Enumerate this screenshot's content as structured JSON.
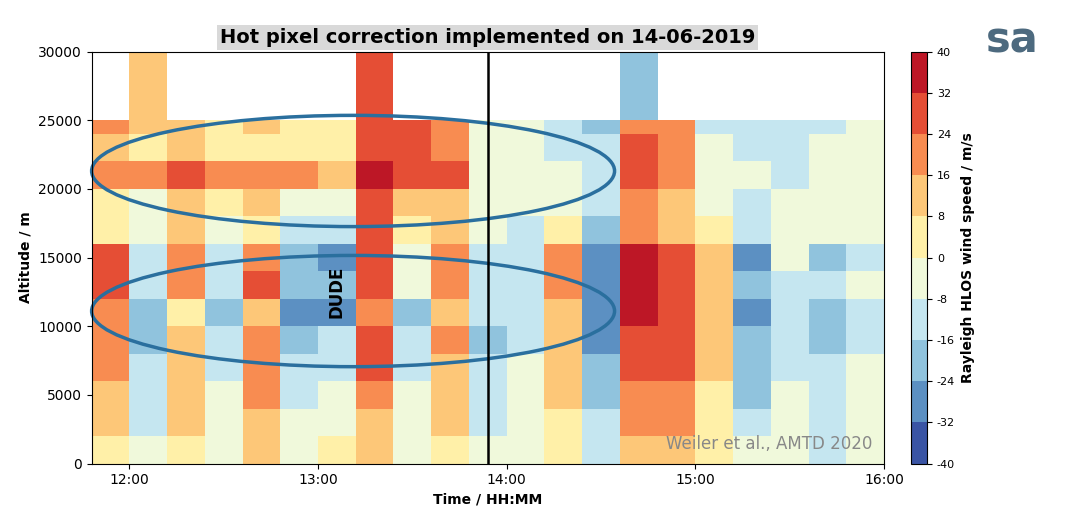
{
  "chart_data": {
    "type": "heatmap",
    "title": "Hot pixel correction implemented on 14-06-2019",
    "x_label": "Time / HH:MM",
    "y_label": "Altitude / m",
    "colorbar_label": "Rayleigh HLOS wind speed / m/s",
    "source": "Weiler et al., AMTD 2020",
    "logo": "sa",
    "annotations": [
      {
        "text": "DUDE",
        "x": 13.1,
        "y": 12500
      }
    ],
    "vlines": [
      13.9
    ],
    "xlim": [
      11.8,
      16.0
    ],
    "xticks": [
      {
        "value": 12,
        "label": "12:00"
      },
      {
        "value": 13,
        "label": "13:00"
      },
      {
        "value": 14,
        "label": "14:00"
      },
      {
        "value": 15,
        "label": "15:00"
      },
      {
        "value": 16,
        "label": "16:00"
      }
    ],
    "ylim": [
      0,
      30000
    ],
    "yticks": [
      0,
      5000,
      10000,
      15000,
      20000,
      25000,
      30000
    ],
    "x_edges": [
      11.8,
      12.0,
      12.2,
      12.4,
      12.6,
      12.8,
      13.0,
      13.2,
      13.4,
      13.6,
      13.8,
      14.0,
      14.2,
      14.4,
      14.6,
      14.8,
      15.0,
      15.2,
      15.4,
      15.6,
      15.8,
      16.0
    ],
    "y_edges": [
      0,
      2000,
      4000,
      6000,
      8000,
      10000,
      12000,
      14000,
      16000,
      18000,
      20000,
      22000,
      24000,
      25000,
      30000
    ],
    "values": [
      [
        4,
        -8,
        6,
        -4,
        8,
        -6,
        2,
        10,
        -4,
        6,
        -8,
        -6,
        4,
        -10,
        8,
        12,
        2,
        -8,
        -4,
        -10,
        -2
      ],
      [
        10,
        -12,
        8,
        -6,
        12,
        -8,
        -4,
        14,
        -6,
        8,
        -10,
        -4,
        6,
        -16,
        16,
        18,
        4,
        -14,
        -6,
        -12,
        -4
      ],
      [
        14,
        -14,
        10,
        -8,
        16,
        -12,
        -6,
        20,
        -8,
        10,
        -14,
        -6,
        8,
        -20,
        20,
        22,
        6,
        -18,
        -8,
        -14,
        -6
      ],
      [
        18,
        -16,
        12,
        -10,
        20,
        -14,
        -10,
        24,
        -10,
        14,
        -16,
        -8,
        10,
        -24,
        26,
        24,
        8,
        -22,
        -10,
        -16,
        -8
      ],
      [
        22,
        -18,
        14,
        -12,
        22,
        -18,
        -16,
        28,
        -12,
        16,
        -18,
        -10,
        12,
        -28,
        30,
        26,
        10,
        -24,
        -12,
        -18,
        -10
      ],
      [
        20,
        -22,
        4,
        -20,
        14,
        -26,
        -28,
        20,
        -18,
        8,
        -16,
        -12,
        14,
        -30,
        32,
        26,
        8,
        -26,
        -14,
        -18,
        -12
      ],
      [
        24,
        -14,
        16,
        -10,
        24,
        -20,
        -24,
        30,
        -8,
        18,
        -14,
        -10,
        16,
        -30,
        34,
        28,
        10,
        -24,
        -10,
        -16,
        -8
      ],
      [
        26,
        -16,
        18,
        -12,
        20,
        -24,
        -30,
        30,
        -6,
        16,
        -12,
        -14,
        18,
        -32,
        34,
        26,
        8,
        -26,
        -8,
        -20,
        -10
      ],
      [
        4,
        -6,
        8,
        -4,
        6,
        -10,
        -14,
        26,
        2,
        8,
        -6,
        -10,
        4,
        -18,
        20,
        12,
        2,
        -12,
        -4,
        -8,
        -6
      ],
      [
        6,
        -4,
        10,
        2,
        8,
        -4,
        -6,
        28,
        12,
        10,
        -4,
        -8,
        -2,
        -12,
        22,
        8,
        -4,
        -10,
        -6,
        -8,
        -4
      ],
      [
        22,
        16,
        24,
        18,
        20,
        16,
        12,
        34,
        28,
        26,
        -2,
        -4,
        -8,
        -14,
        26,
        20,
        -6,
        -8,
        -10,
        -6,
        -4
      ],
      [
        14,
        6,
        8,
        4,
        6,
        2,
        4,
        30,
        24,
        18,
        -6,
        -4,
        -10,
        -16,
        24,
        18,
        -8,
        -10,
        -12,
        -8,
        -6
      ],
      [
        18,
        8,
        10,
        6,
        8,
        4,
        6,
        30,
        26,
        20,
        -4,
        -6,
        -12,
        -18,
        22,
        16,
        -10,
        -12,
        -14,
        -10,
        -8
      ],
      [
        null,
        12,
        null,
        null,
        null,
        null,
        null,
        30,
        null,
        null,
        null,
        null,
        null,
        null,
        -24,
        null,
        null,
        null,
        null,
        null,
        null
      ]
    ],
    "clim": [
      -40,
      40
    ],
    "colorbar_ticks": [
      -40,
      -32,
      -24,
      -16,
      -8,
      0,
      8,
      16,
      24,
      32,
      40
    ]
  }
}
